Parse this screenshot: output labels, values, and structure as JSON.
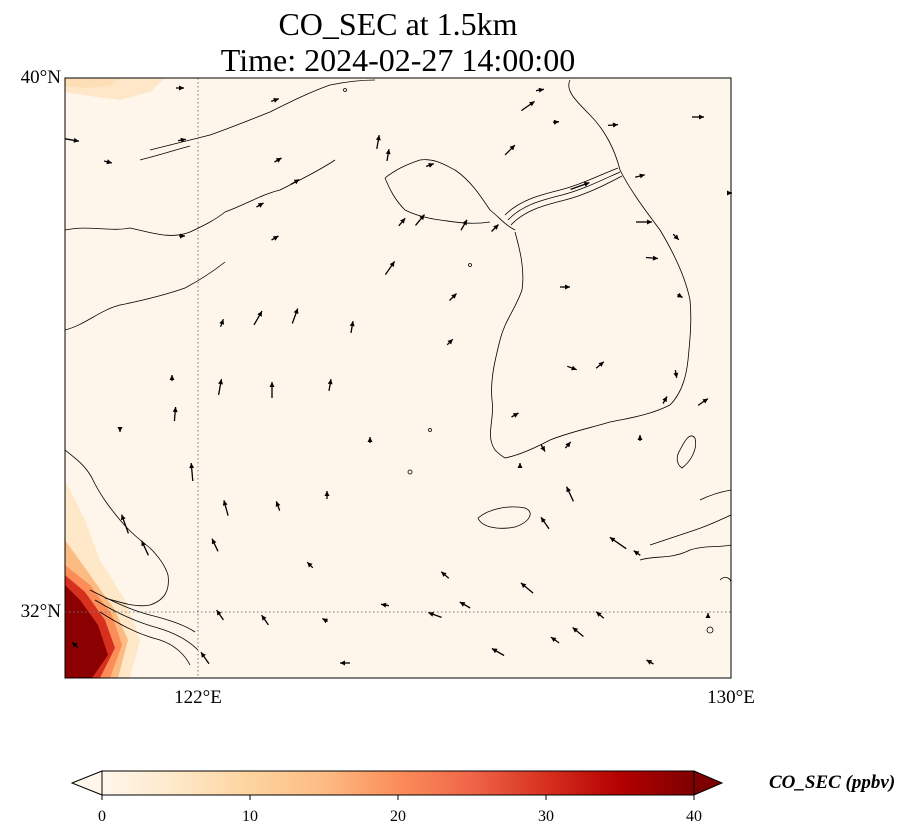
{
  "title": {
    "line1": "CO_SEC at 1.5km",
    "line2": "Time: 2024-02-27 14:00:00"
  },
  "map": {
    "lon_range": [
      118,
      130
    ],
    "lat_range": [
      30.8,
      40
    ],
    "gridlines": {
      "lons": [
        122
      ],
      "lats": [
        32
      ],
      "style": "dotted"
    },
    "lat_labels": [
      "40°N",
      "32°N"
    ],
    "lon_labels": [
      "122°E",
      "130°E"
    ],
    "field": "CO_SEC",
    "background_value_ppbv": 1,
    "high_region": "southwest corner (near 118–120°E, 30.8–33°N) up to ~40 ppbv; faint enhancement near top-left corner",
    "wind_vectors": "shown as black arrows across domain"
  },
  "colorbar": {
    "label": "CO_SEC (ppbv)",
    "ticks": [
      "0",
      "10",
      "20",
      "30",
      "40"
    ],
    "min": 0,
    "max": 40,
    "extend": "both",
    "colormap": "OrRd",
    "colors": [
      "#fff7ec",
      "#fee8c8",
      "#fdd49e",
      "#fdbb84",
      "#fc8d59",
      "#ef6548",
      "#d7301f",
      "#b30000",
      "#7f0000"
    ]
  }
}
